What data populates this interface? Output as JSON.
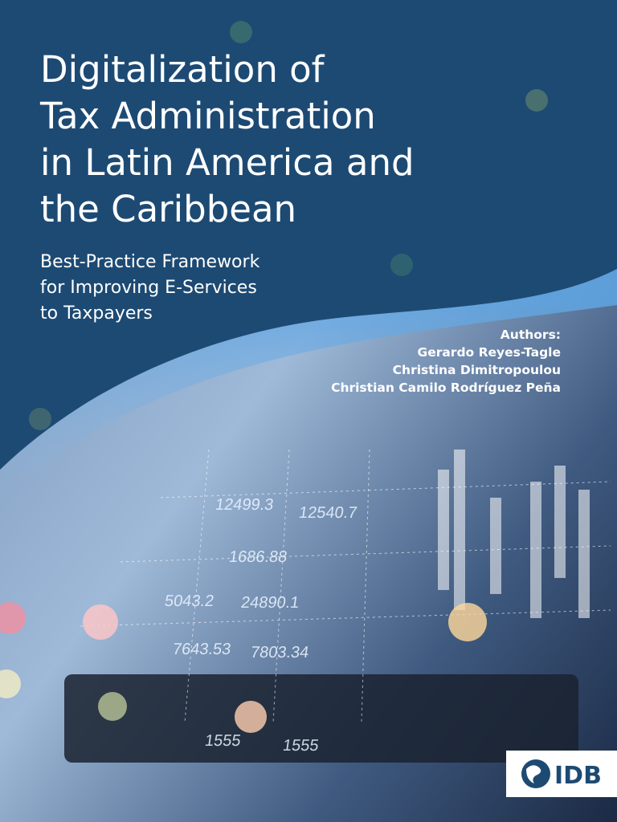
{
  "title": {
    "lines": [
      "Digitalization of",
      "Tax Administration",
      "in Latin America and",
      "the Caribbean"
    ]
  },
  "subtitle": {
    "lines": [
      "Best-Practice Framework",
      "for Improving E-Services",
      "to Taxpayers"
    ]
  },
  "authors": {
    "label": "Authors:",
    "names": [
      "Gerardo Reyes-Tagle",
      "Christina Dimitropoulou",
      "Christian Camilo Rodríguez Peña"
    ]
  },
  "publisher": {
    "logo": "IDB"
  },
  "image_figures": [
    "12499.3",
    "12540.7",
    "1686.88",
    "5043.2",
    "24890.1",
    "7643.53",
    "7803.34",
    "1555",
    "1555"
  ]
}
